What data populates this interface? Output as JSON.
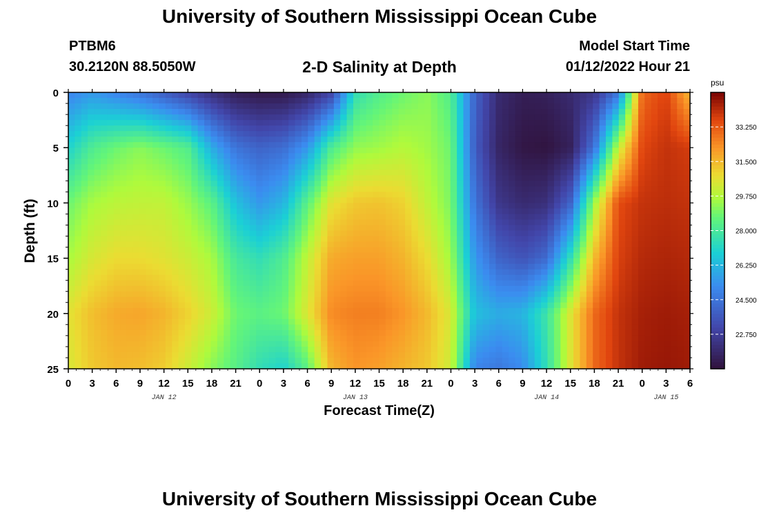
{
  "header": {
    "title": "University of Southern Mississippi Ocean Cube",
    "station": "PTBM6",
    "coordinates": "30.2120N  88.5050W",
    "subtitle": "2-D Salinity at Depth",
    "model_start_label": "Model Start Time",
    "model_start_value": "01/12/2022 Hour 21"
  },
  "footer": {
    "title": "University of Southern Mississippi Ocean Cube"
  },
  "chart_data": {
    "type": "heatmap",
    "title": "2-D Salinity at Depth",
    "xlabel": "Forecast Time(Z)",
    "ylabel": "Depth (ft)",
    "x_range_hours": [
      0,
      78
    ],
    "ylim": [
      0,
      25
    ],
    "y_ticks": [
      0,
      5,
      10,
      15,
      20,
      25
    ],
    "x_tick_labels": [
      "0",
      "3",
      "6",
      "9",
      "12",
      "15",
      "18",
      "21",
      "0",
      "3",
      "6",
      "9",
      "12",
      "15",
      "18",
      "21",
      "0",
      "3",
      "6",
      "9",
      "12",
      "15",
      "18",
      "21",
      "0",
      "3",
      "6"
    ],
    "date_labels": [
      {
        "label": "JAN 12",
        "hour": 12
      },
      {
        "label": "JAN 13",
        "hour": 36
      },
      {
        "label": "JAN 14",
        "hour": 60
      },
      {
        "label": "JAN 15",
        "hour": 75
      }
    ],
    "colorbar": {
      "unit": "psu",
      "range": [
        21.0,
        35.0
      ],
      "tick_values": [
        22.75,
        24.5,
        26.25,
        28.0,
        29.75,
        31.5,
        33.25
      ],
      "tick_labels": [
        "22.750",
        "24.500",
        "26.250",
        "28.000",
        "29.750",
        "31.500",
        "33.250"
      ]
    },
    "grid": {
      "times": [
        0,
        3,
        6,
        9,
        12,
        15,
        18,
        21,
        24,
        27,
        30,
        33,
        36,
        39,
        42,
        45,
        48,
        51,
        54,
        57,
        60,
        63,
        66,
        69,
        72,
        75,
        78
      ],
      "depths": [
        0,
        5,
        10,
        15,
        20,
        25
      ],
      "salinity": [
        [
          25.0,
          25.5,
          25.0,
          24.5,
          23.8,
          23.0,
          22.2,
          21.5,
          21.3,
          21.3,
          21.8,
          23.0,
          27.5,
          28.3,
          28.8,
          29.2,
          28.3,
          24.0,
          22.0,
          21.5,
          21.6,
          22.0,
          22.5,
          24.5,
          33.0,
          33.7,
          31.5
        ],
        [
          27.0,
          28.2,
          28.8,
          29.2,
          28.8,
          28.3,
          26.0,
          24.5,
          24.0,
          24.3,
          25.5,
          28.2,
          29.3,
          29.5,
          29.8,
          29.5,
          28.8,
          23.8,
          21.8,
          21.2,
          21.1,
          21.6,
          24.5,
          30.0,
          33.6,
          34.0,
          33.8
        ],
        [
          28.8,
          29.6,
          29.9,
          30.0,
          30.0,
          29.4,
          28.5,
          26.5,
          25.5,
          26.2,
          28.5,
          30.6,
          31.2,
          31.3,
          31.0,
          30.0,
          29.0,
          24.5,
          22.5,
          22.0,
          22.2,
          24.0,
          29.5,
          33.5,
          34.0,
          34.1,
          34.0
        ],
        [
          29.6,
          30.4,
          30.8,
          30.8,
          30.6,
          30.2,
          29.6,
          28.0,
          27.5,
          28.2,
          30.0,
          31.8,
          32.0,
          32.0,
          31.6,
          30.8,
          29.5,
          25.5,
          24.0,
          23.5,
          24.2,
          27.5,
          31.5,
          33.7,
          34.2,
          34.3,
          34.2
        ],
        [
          30.6,
          31.4,
          31.8,
          31.9,
          31.6,
          31.0,
          30.2,
          28.8,
          28.5,
          28.8,
          30.5,
          32.4,
          32.6,
          32.6,
          32.2,
          31.5,
          30.4,
          26.5,
          26.0,
          26.2,
          27.8,
          30.5,
          33.0,
          34.0,
          34.4,
          34.5,
          34.4
        ],
        [
          30.4,
          31.2,
          31.5,
          31.4,
          31.1,
          30.2,
          29.2,
          28.4,
          27.5,
          27.0,
          28.5,
          31.6,
          32.2,
          32.0,
          31.6,
          31.2,
          30.2,
          25.0,
          24.6,
          25.2,
          27.5,
          30.5,
          33.0,
          34.0,
          34.5,
          34.6,
          34.5
        ]
      ]
    }
  }
}
